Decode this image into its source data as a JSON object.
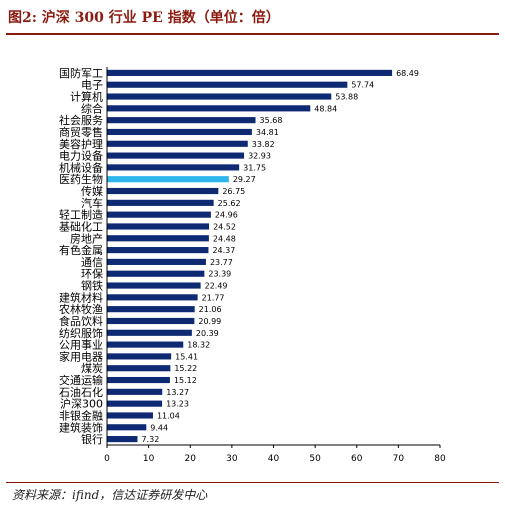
{
  "figure": {
    "title": "图2: 沪深 300 行业 PE 指数（单位：倍）",
    "source": "资料来源：ifind，信达证券研发中心"
  },
  "colors": {
    "bar": "#0d2a73",
    "highlight": "#2eb6ea",
    "title": "#8b1a10"
  },
  "chart_data": {
    "type": "bar",
    "orientation": "horizontal",
    "categories": [
      "国防军工",
      "电子",
      "计算机",
      "综合",
      "社会服务",
      "商贸零售",
      "美容护理",
      "电力设备",
      "机械设备",
      "医药生物",
      "传媒",
      "汽车",
      "轻工制造",
      "基础化工",
      "房地产",
      "有色金属",
      "通信",
      "环保",
      "钢铁",
      "建筑材料",
      "农林牧渔",
      "食品饮料",
      "纺织服饰",
      "公用事业",
      "家用电器",
      "煤炭",
      "交通运输",
      "石油石化",
      "沪深300",
      "非银金融",
      "建筑装饰",
      "银行"
    ],
    "values": [
      68.49,
      57.74,
      53.88,
      48.84,
      35.68,
      34.81,
      33.82,
      32.93,
      31.75,
      29.27,
      26.75,
      25.62,
      24.96,
      24.52,
      24.48,
      24.37,
      23.77,
      23.39,
      22.49,
      21.77,
      21.06,
      20.99,
      20.39,
      18.32,
      15.41,
      15.22,
      15.12,
      13.27,
      13.23,
      11.04,
      9.44,
      7.32
    ],
    "data_labels": [
      "68.49",
      "57.74",
      "53.88",
      "48.84",
      "35.68",
      "34.81",
      "33.82",
      "32.93",
      "31.75",
      "29.27",
      "26.75",
      "25.62",
      "24.96",
      "24.52",
      "24.48",
      "24.37",
      "23.77",
      "23.39",
      "22.49",
      "21.77",
      "21.06",
      "20.99",
      "20.39",
      "18.32",
      "15.41",
      "15.22",
      "15.12",
      "13.27",
      "13.23",
      "11.04",
      "9.44",
      "7.32"
    ],
    "highlighted_category": "医药生物",
    "xlim": [
      0,
      80
    ],
    "xticks": [
      0,
      10,
      20,
      30,
      40,
      50,
      60,
      70,
      80
    ],
    "xtick_labels": [
      "0",
      "10",
      "20",
      "30",
      "40",
      "50",
      "60",
      "70",
      "80"
    ],
    "xlabel": "",
    "ylabel": "",
    "grid": false,
    "legend": "none"
  }
}
